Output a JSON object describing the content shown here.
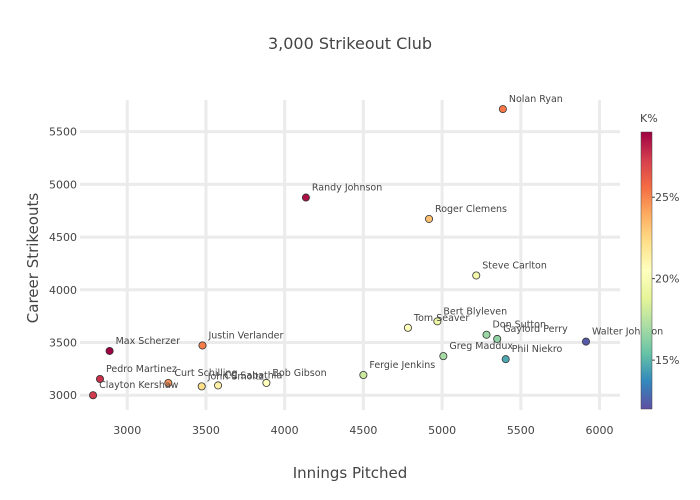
{
  "chart_data": {
    "type": "scatter",
    "title": "3,000 Strikeout Club",
    "xlabel": "Innings Pitched",
    "ylabel": "Career Strikeouts",
    "xlim": [
      2700,
      6130
    ],
    "ylim": [
      2860,
      5800
    ],
    "x_ticks": [
      3000,
      3500,
      4000,
      4500,
      5000,
      5500,
      6000
    ],
    "y_ticks": [
      3000,
      3500,
      4000,
      4500,
      5000,
      5500
    ],
    "grid": true,
    "colorbar": {
      "title": "K%",
      "range": [
        12,
        29
      ],
      "ticks": [
        {
          "value": 15,
          "label": "15%"
        },
        {
          "value": 20,
          "label": "20%"
        },
        {
          "value": 25,
          "label": "25%"
        }
      ],
      "colors": [
        "#5e4fa2",
        "#3288bd",
        "#66c2a5",
        "#abdda4",
        "#e6f598",
        "#ffffbf",
        "#fee08b",
        "#fdae61",
        "#f46d43",
        "#d53e4f",
        "#9e0142"
      ]
    },
    "points": [
      {
        "name": "Nolan Ryan",
        "x": 5386,
        "y": 5714,
        "k": 25.3
      },
      {
        "name": "Randy Johnson",
        "x": 4135,
        "y": 4875,
        "k": 28.6
      },
      {
        "name": "Roger Clemens",
        "x": 4917,
        "y": 4672,
        "k": 23.3
      },
      {
        "name": "Steve Carlton",
        "x": 5217,
        "y": 4136,
        "k": 19.7
      },
      {
        "name": "Bert Blyleven",
        "x": 4970,
        "y": 3701,
        "k": 19.4
      },
      {
        "name": "Tom Seaver",
        "x": 4783,
        "y": 3640,
        "k": 20.6
      },
      {
        "name": "Don Sutton",
        "x": 5282,
        "y": 3574,
        "k": 16.7
      },
      {
        "name": "Gaylord Perry",
        "x": 5350,
        "y": 3534,
        "k": 16.4
      },
      {
        "name": "Walter Johnson",
        "x": 5914,
        "y": 3509,
        "k": 12.3
      },
      {
        "name": "Justin Verlander",
        "x": 3478,
        "y": 3472,
        "k": 25.2
      },
      {
        "name": "Max Scherzer",
        "x": 2888,
        "y": 3420,
        "k": 29.0
      },
      {
        "name": "Greg Maddux",
        "x": 5008,
        "y": 3371,
        "k": 17.0
      },
      {
        "name": "Phil Niekro",
        "x": 5404,
        "y": 3342,
        "k": 14.6
      },
      {
        "name": "Fergie Jenkins",
        "x": 4500,
        "y": 3192,
        "k": 18.0
      },
      {
        "name": "Pedro Martinez",
        "x": 2827,
        "y": 3154,
        "k": 27.7
      },
      {
        "name": "Bob Gibson",
        "x": 3884,
        "y": 3117,
        "k": 20.4
      },
      {
        "name": "Curt Schilling",
        "x": 3261,
        "y": 3116,
        "k": 24.6
      },
      {
        "name": "CC Sabathia",
        "x": 3577,
        "y": 3093,
        "k": 21.3
      },
      {
        "name": "John Smoltz",
        "x": 3473,
        "y": 3084,
        "k": 22.2
      },
      {
        "name": "Clayton Kershaw",
        "x": 2783,
        "y": 3000,
        "k": 27.4
      }
    ]
  }
}
